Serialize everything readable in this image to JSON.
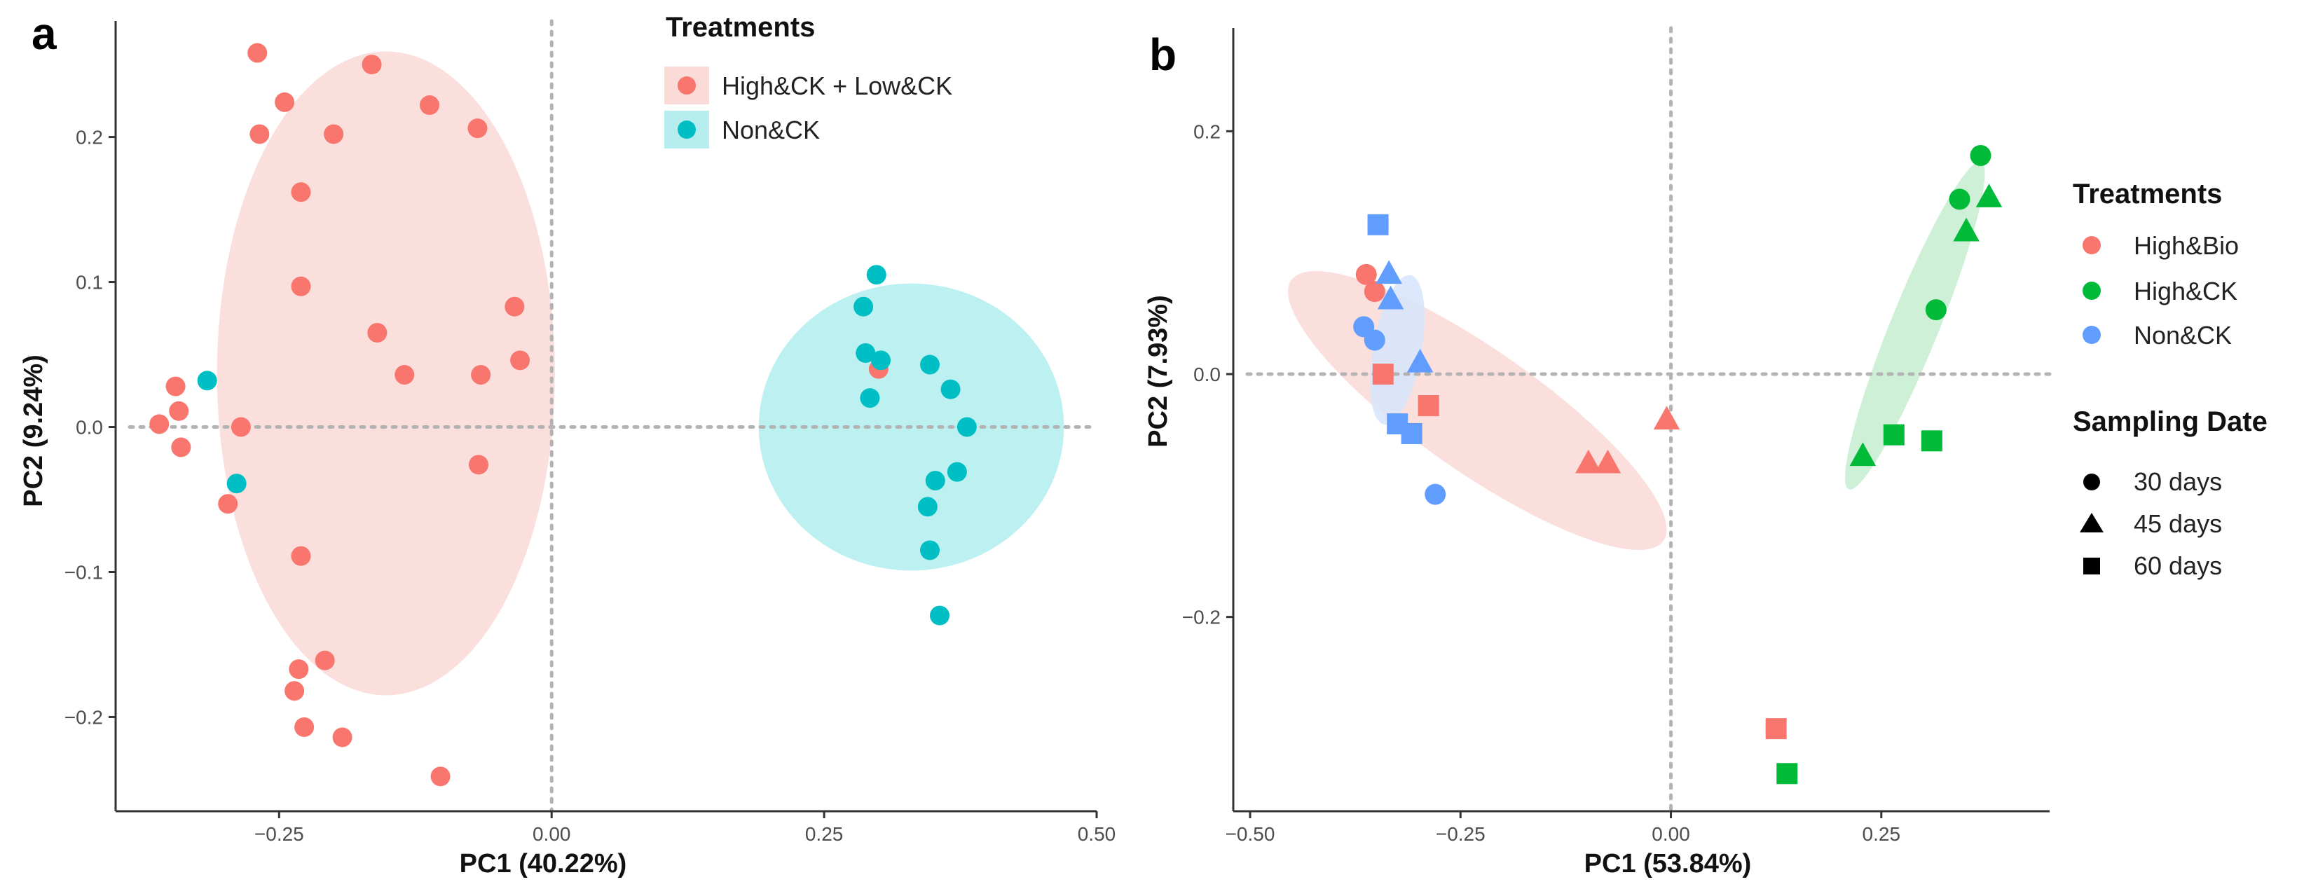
{
  "chart_data": [
    {
      "type": "scatter",
      "panel_label": "a",
      "xlabel": "PC1 (40.22%)",
      "ylabel": "PC2 (9.24%)",
      "xlim": [
        -0.4,
        0.5
      ],
      "ylim": [
        -0.265,
        0.28
      ],
      "xticks": [
        -0.25,
        0.0,
        0.25,
        0.5
      ],
      "xtick_labels": [
        "-0.25",
        "0.00",
        "0.25",
        "0.50"
      ],
      "yticks": [
        -0.2,
        -0.1,
        0.0,
        0.1,
        0.2
      ],
      "ytick_labels": [
        "-0.2",
        "-0.1",
        "0.0",
        "0.1",
        "0.2"
      ],
      "reference_lines": {
        "x": 0,
        "y": 0,
        "style": "dotted"
      },
      "legend": {
        "title": "Treatments",
        "position": "top",
        "entries": [
          {
            "label": "High&CK + Low&CK",
            "series": "HighLowCK"
          },
          {
            "label": "Non&CK",
            "series": "NonCK"
          }
        ]
      },
      "series": [
        {
          "name": "High&CK + Low&CK",
          "key": "HighLowCK",
          "color": "#F8766D",
          "ellipse_color": "#FADBD8",
          "ellipse": {
            "cx": -0.152,
            "cy": 0.037,
            "rx": 0.155,
            "ry": 0.222,
            "angle": 0
          },
          "points": [
            {
              "x": -0.27,
              "y": 0.258
            },
            {
              "x": -0.165,
              "y": 0.25
            },
            {
              "x": -0.245,
              "y": 0.224
            },
            {
              "x": -0.112,
              "y": 0.222
            },
            {
              "x": -0.068,
              "y": 0.206
            },
            {
              "x": -0.268,
              "y": 0.202
            },
            {
              "x": -0.2,
              "y": 0.202
            },
            {
              "x": -0.23,
              "y": 0.162
            },
            {
              "x": -0.23,
              "y": 0.097
            },
            {
              "x": -0.034,
              "y": 0.083
            },
            {
              "x": -0.16,
              "y": 0.065
            },
            {
              "x": -0.029,
              "y": 0.046
            },
            {
              "x": -0.135,
              "y": 0.036
            },
            {
              "x": -0.065,
              "y": 0.036
            },
            {
              "x": -0.345,
              "y": 0.028
            },
            {
              "x": -0.342,
              "y": 0.011
            },
            {
              "x": -0.36,
              "y": 0.002
            },
            {
              "x": -0.285,
              "y": 0.0
            },
            {
              "x": -0.34,
              "y": -0.014
            },
            {
              "x": -0.067,
              "y": -0.026
            },
            {
              "x": -0.297,
              "y": -0.053
            },
            {
              "x": -0.23,
              "y": -0.089
            },
            {
              "x": -0.208,
              "y": -0.161
            },
            {
              "x": -0.232,
              "y": -0.167
            },
            {
              "x": -0.236,
              "y": -0.182
            },
            {
              "x": -0.227,
              "y": -0.207
            },
            {
              "x": -0.192,
              "y": -0.214
            },
            {
              "x": -0.102,
              "y": -0.241
            },
            {
              "x": 0.3,
              "y": 0.04
            }
          ]
        },
        {
          "name": "Non&CK",
          "key": "NonCK",
          "color": "#00BFC4",
          "ellipse_color": "#B6EEF0",
          "ellipse": {
            "cx": 0.33,
            "cy": 0.0,
            "rx": 0.14,
            "ry": 0.099,
            "angle": 0
          },
          "points": [
            {
              "x": 0.298,
              "y": 0.105
            },
            {
              "x": 0.286,
              "y": 0.083
            },
            {
              "x": 0.288,
              "y": 0.051
            },
            {
              "x": 0.302,
              "y": 0.046
            },
            {
              "x": 0.347,
              "y": 0.043
            },
            {
              "x": 0.366,
              "y": 0.026
            },
            {
              "x": 0.292,
              "y": 0.02
            },
            {
              "x": 0.381,
              "y": 0.0
            },
            {
              "x": 0.372,
              "y": -0.031
            },
            {
              "x": 0.352,
              "y": -0.037
            },
            {
              "x": 0.345,
              "y": -0.055
            },
            {
              "x": 0.347,
              "y": -0.085
            },
            {
              "x": 0.356,
              "y": -0.13
            },
            {
              "x": -0.316,
              "y": 0.032
            },
            {
              "x": -0.289,
              "y": -0.039
            }
          ]
        }
      ]
    },
    {
      "type": "scatter",
      "panel_label": "b",
      "xlabel": "PC1 (53.84%)",
      "ylabel": "PC2 (7.93%)",
      "xlim": [
        -0.52,
        0.45
      ],
      "ylim": [
        -0.36,
        0.285
      ],
      "xticks": [
        -0.5,
        -0.25,
        0.0,
        0.25
      ],
      "xtick_labels": [
        "-0.50",
        "-0.25",
        "0.00",
        "0.25"
      ],
      "yticks": [
        -0.2,
        0.0,
        0.2
      ],
      "ytick_labels": [
        "-0.2",
        "0.0",
        "0.2"
      ],
      "reference_lines": {
        "x": 0,
        "y": 0,
        "style": "dotted"
      },
      "legend": {
        "position": "right",
        "treatments_title": "Treatments",
        "treatments": [
          {
            "label": "High&Bio",
            "color": "#F8766D"
          },
          {
            "label": "High&CK",
            "color": "#00BA38"
          },
          {
            "label": "Non&CK",
            "color": "#619CFF"
          }
        ],
        "shape_title": "Sampling Date",
        "shapes": [
          {
            "label": "30 days",
            "shape": "circle"
          },
          {
            "label": "45 days",
            "shape": "triangle"
          },
          {
            "label": "60 days",
            "shape": "square"
          }
        ]
      },
      "series": [
        {
          "name": "High&Bio",
          "color": "#F8766D",
          "ellipse_color": "#FADBD8",
          "ellipse": {
            "cx": -0.23,
            "cy": -0.03,
            "rx": 0.27,
            "ry": 0.05,
            "angle_deg": 35
          },
          "points": [
            {
              "x": -0.362,
              "y": 0.082,
              "shape": "circle"
            },
            {
              "x": -0.352,
              "y": 0.068,
              "shape": "circle"
            },
            {
              "x": -0.342,
              "y": 0.0,
              "shape": "square"
            },
            {
              "x": -0.288,
              "y": -0.026,
              "shape": "square"
            },
            {
              "x": -0.098,
              "y": -0.073,
              "shape": "triangle"
            },
            {
              "x": -0.075,
              "y": -0.073,
              "shape": "triangle"
            },
            {
              "x": -0.005,
              "y": -0.037,
              "shape": "triangle"
            },
            {
              "x": 0.125,
              "y": -0.292,
              "shape": "square"
            }
          ]
        },
        {
          "name": "High&CK",
          "color": "#00BA38",
          "ellipse_color": "#C9EED3",
          "ellipse": {
            "cx": 0.29,
            "cy": 0.04,
            "rx": 0.21,
            "ry": 0.02,
            "angle_deg": -68
          },
          "points": [
            {
              "x": 0.368,
              "y": 0.18,
              "shape": "circle"
            },
            {
              "x": 0.343,
              "y": 0.144,
              "shape": "circle"
            },
            {
              "x": 0.378,
              "y": 0.146,
              "shape": "triangle"
            },
            {
              "x": 0.351,
              "y": 0.118,
              "shape": "triangle"
            },
            {
              "x": 0.315,
              "y": 0.053,
              "shape": "circle"
            },
            {
              "x": 0.265,
              "y": -0.05,
              "shape": "square"
            },
            {
              "x": 0.31,
              "y": -0.055,
              "shape": "square"
            },
            {
              "x": 0.228,
              "y": -0.067,
              "shape": "triangle"
            },
            {
              "x": 0.138,
              "y": -0.329,
              "shape": "square"
            }
          ]
        },
        {
          "name": "Non&CK",
          "color": "#619CFF",
          "ellipse_color": "#D8E5FB",
          "ellipse": {
            "cx": -0.325,
            "cy": 0.02,
            "rx": 0.09,
            "ry": 0.02,
            "angle_deg": -80
          },
          "points": [
            {
              "x": -0.348,
              "y": 0.123,
              "shape": "square"
            },
            {
              "x": -0.335,
              "y": 0.083,
              "shape": "triangle"
            },
            {
              "x": -0.333,
              "y": 0.062,
              "shape": "triangle"
            },
            {
              "x": -0.365,
              "y": 0.039,
              "shape": "circle"
            },
            {
              "x": -0.352,
              "y": 0.028,
              "shape": "circle"
            },
            {
              "x": -0.298,
              "y": 0.01,
              "shape": "triangle"
            },
            {
              "x": -0.325,
              "y": -0.041,
              "shape": "square"
            },
            {
              "x": -0.308,
              "y": -0.049,
              "shape": "square"
            },
            {
              "x": -0.28,
              "y": -0.099,
              "shape": "circle"
            }
          ]
        }
      ]
    }
  ]
}
